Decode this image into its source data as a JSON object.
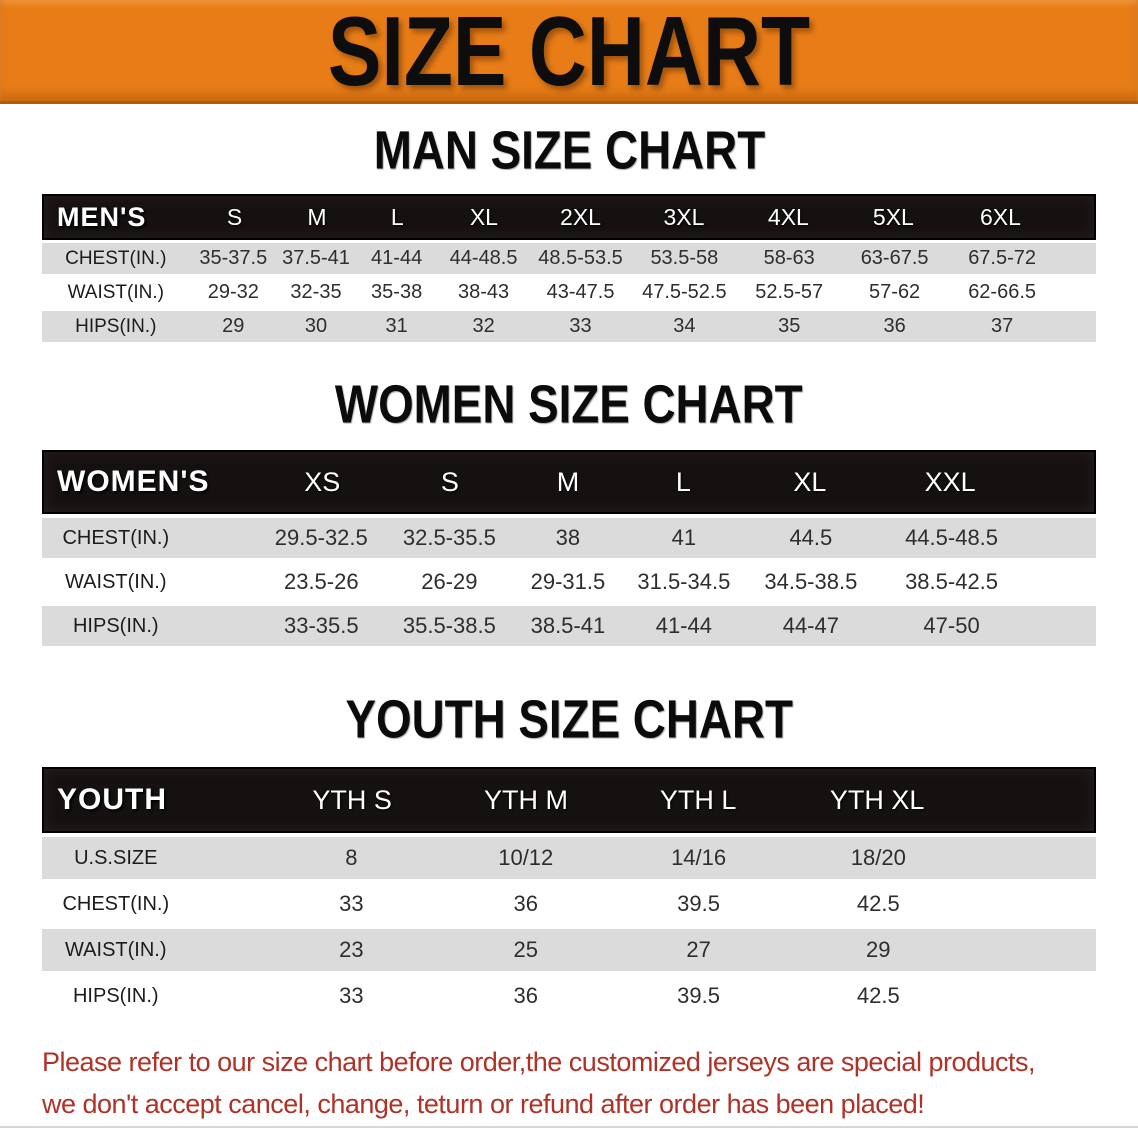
{
  "banner": {
    "title": "SIZE CHART",
    "bg_color": "#E87D17",
    "text_color": "#0D0D0D"
  },
  "sections": {
    "men": {
      "title": "MAN SIZE CHART",
      "header": {
        "label": "MEN'S",
        "sizes": [
          "S",
          "M",
          "L",
          "XL",
          "2XL",
          "3XL",
          "4XL",
          "5XL",
          "6XL"
        ]
      },
      "rows": [
        {
          "label": "CHEST(IN.)",
          "values": [
            "35-37.5",
            "37.5-41",
            "41-44",
            "44-48.5",
            "48.5-53.5",
            "53.5-58",
            "58-63",
            "63-67.5",
            "67.5-72"
          ]
        },
        {
          "label": "WAIST(IN.)",
          "values": [
            "29-32",
            "32-35",
            "35-38",
            "38-43",
            "43-47.5",
            "47.5-52.5",
            "52.5-57",
            "57-62",
            "62-66.5"
          ]
        },
        {
          "label": "HIPS(IN.)",
          "values": [
            "29",
            "30",
            "31",
            "32",
            "33",
            "34",
            "35",
            "36",
            "37"
          ]
        }
      ]
    },
    "women": {
      "title": "WOMEN SIZE CHART",
      "header": {
        "label": "WOMEN'S",
        "sizes": [
          "XS",
          "S",
          "M",
          "L",
          "XL",
          "XXL"
        ]
      },
      "rows": [
        {
          "label": "CHEST(IN.)",
          "values": [
            "29.5-32.5",
            "32.5-35.5",
            "38",
            "41",
            "44.5",
            "44.5-48.5"
          ]
        },
        {
          "label": "WAIST(IN.)",
          "values": [
            "23.5-26",
            "26-29",
            "29-31.5",
            "31.5-34.5",
            "34.5-38.5",
            "38.5-42.5"
          ]
        },
        {
          "label": "HIPS(IN.)",
          "values": [
            "33-35.5",
            "35.5-38.5",
            "38.5-41",
            "41-44",
            "44-47",
            "47-50"
          ]
        }
      ]
    },
    "youth": {
      "title": "YOUTH SIZE CHART",
      "header": {
        "label": "YOUTH",
        "sizes": [
          "YTH S",
          "YTH M",
          "YTH L",
          "YTH XL"
        ]
      },
      "rows": [
        {
          "label": "U.S.SIZE",
          "values": [
            "8",
            "10/12",
            "14/16",
            "18/20"
          ]
        },
        {
          "label": "CHEST(IN.)",
          "values": [
            "33",
            "36",
            "39.5",
            "42.5"
          ]
        },
        {
          "label": "WAIST(IN.)",
          "values": [
            "23",
            "25",
            "27",
            "29"
          ]
        },
        {
          "label": "HIPS(IN.)",
          "values": [
            "33",
            "36",
            "39.5",
            "42.5"
          ]
        }
      ]
    }
  },
  "note": {
    "line1": "Please refer to our size chart before order,the customized jerseys are special products,",
    "line2": "we don't accept cancel, change, teturn or refund after order has been placed!",
    "color": "#B03227"
  },
  "colors": {
    "header_bar_bg": "#161111",
    "row_stripe": "#DBDBDB",
    "banner_orange": "#E87D17"
  }
}
